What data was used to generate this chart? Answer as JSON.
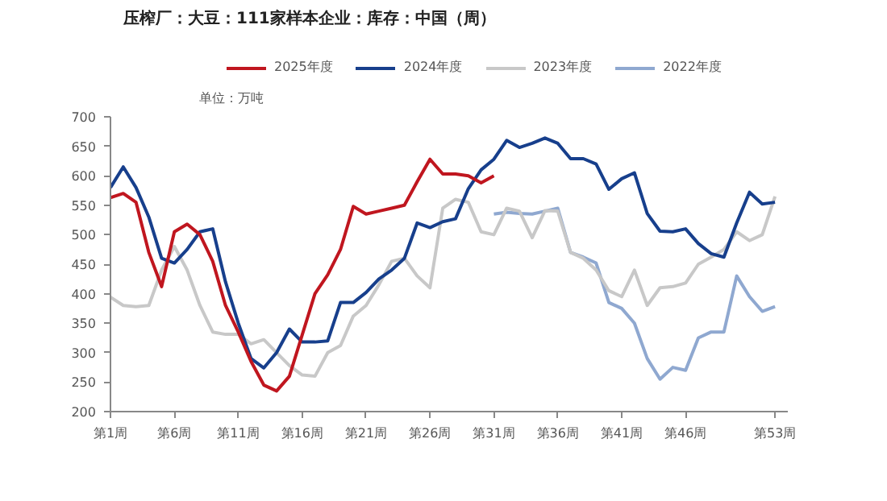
{
  "chart_data": {
    "type": "line",
    "title": "压榨厂：大豆：111家样本企业：库存：中国（周）",
    "ylabel": "单位：万吨",
    "categories": [
      "第1周",
      null,
      null,
      null,
      null,
      "第6周",
      null,
      null,
      null,
      null,
      "第11周",
      null,
      null,
      null,
      null,
      "第16周",
      null,
      null,
      null,
      null,
      "第21周",
      null,
      null,
      null,
      null,
      "第26周",
      null,
      null,
      null,
      null,
      "第31周",
      null,
      null,
      null,
      null,
      "第36周",
      null,
      null,
      null,
      null,
      "第41周",
      null,
      null,
      null,
      null,
      "第46周",
      null,
      null,
      null,
      null,
      null,
      null,
      "第53周"
    ],
    "series": [
      {
        "name": "2025年度",
        "color": "#c0161f",
        "values": [
          563,
          570,
          555,
          470,
          412,
          505,
          518,
          500,
          455,
          380,
          335,
          285,
          245,
          235,
          260,
          330,
          400,
          432,
          475,
          548,
          535,
          540,
          545,
          550,
          590,
          628,
          603,
          603,
          600,
          588,
          600,
          null,
          null,
          null,
          null,
          null,
          null,
          null,
          null,
          null,
          null,
          null,
          null,
          null,
          null,
          null,
          null,
          null,
          null,
          null,
          null,
          null,
          null
        ]
      },
      {
        "name": "2024年度",
        "color": "#173f8c",
        "values": [
          580,
          615,
          580,
          530,
          460,
          452,
          475,
          505,
          510,
          420,
          350,
          290,
          274,
          300,
          340,
          318,
          318,
          320,
          385,
          385,
          402,
          425,
          440,
          460,
          520,
          512,
          522,
          527,
          578,
          610,
          628,
          660,
          648,
          655,
          664,
          655,
          629,
          629,
          620,
          577,
          595,
          605,
          536,
          506,
          505,
          510,
          485,
          468,
          462,
          520,
          572,
          552,
          555
        ]
      },
      {
        "name": "2023年度",
        "color": "#c8c8c8",
        "values": [
          394,
          380,
          378,
          380,
          440,
          480,
          440,
          380,
          335,
          331,
          331,
          315,
          322,
          300,
          278,
          262,
          260,
          300,
          312,
          362,
          380,
          415,
          455,
          460,
          430,
          410,
          545,
          560,
          555,
          505,
          500,
          545,
          540,
          495,
          541,
          540,
          470,
          460,
          440,
          405,
          395,
          440,
          380,
          410,
          412,
          418,
          450,
          462,
          475,
          505,
          490,
          500,
          565
        ]
      },
      {
        "name": "2022年度",
        "color": "#8fa8d0",
        "values": [
          null,
          null,
          null,
          null,
          null,
          null,
          null,
          null,
          null,
          null,
          null,
          null,
          null,
          null,
          null,
          null,
          null,
          null,
          null,
          null,
          null,
          null,
          null,
          null,
          null,
          null,
          null,
          null,
          null,
          null,
          535,
          538,
          536,
          535,
          540,
          545,
          470,
          462,
          452,
          385,
          375,
          350,
          290,
          255,
          275,
          270,
          325,
          335,
          335,
          430,
          395,
          370,
          378
        ]
      }
    ],
    "ylim": [
      200,
      700
    ],
    "yticks": [
      200,
      250,
      300,
      350,
      400,
      450,
      500,
      550,
      600,
      650,
      700
    ],
    "grid": false,
    "legend": "top",
    "marker": "none",
    "line_style": "solid"
  }
}
